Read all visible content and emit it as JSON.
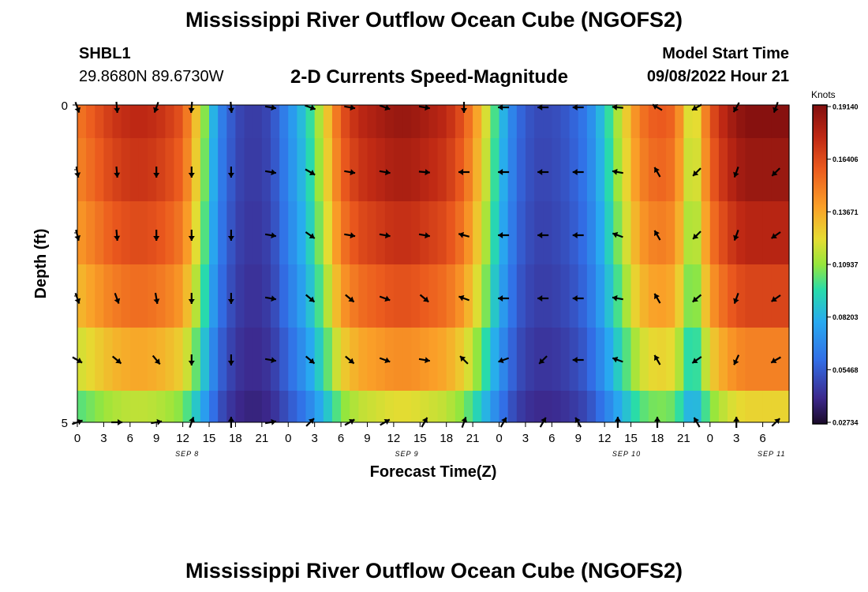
{
  "header": {
    "title": "Mississippi River Outflow Ocean Cube (NGOFS2)",
    "station_id": "SHBL1",
    "station_coords": "29.8680N  89.6730W",
    "subtitle": "2-D Currents Speed-Magnitude",
    "model_label": "Model Start Time",
    "model_time": "09/08/2022 Hour 21"
  },
  "footer": {
    "title": "Mississippi River Outflow Ocean Cube (NGOFS2)"
  },
  "chart_data": {
    "type": "heatmap",
    "xlabel": "Forecast Time(Z)",
    "ylabel": "Depth (ft)",
    "colorbar_label": "Knots",
    "colorbar_ticks": [
      "0.19140",
      "0.16406",
      "0.13671",
      "0.10937",
      "0.08203",
      "0.05468",
      "0.02734"
    ],
    "colorbar_values": [
      0.1914,
      0.16406,
      0.13671,
      0.10937,
      0.08203,
      0.05468,
      0.02734
    ],
    "zlim": [
      0.02734,
      0.1914
    ],
    "x_range_hours": [
      0,
      81
    ],
    "x_tick_labels": [
      "0",
      "3",
      "6",
      "9",
      "12",
      "15",
      "18",
      "21",
      "0",
      "3",
      "6",
      "9",
      "12",
      "15",
      "18",
      "21",
      "0",
      "3",
      "6",
      "9",
      "12",
      "15",
      "18",
      "21",
      "0",
      "3",
      "6"
    ],
    "date_labels": [
      "SEP 8",
      "SEP 9",
      "SEP 10",
      "SEP 11"
    ],
    "date_label_hours": [
      12.5,
      37.5,
      62.5,
      79
    ],
    "y_tick_labels": [
      "0",
      "5"
    ],
    "ylim": [
      0,
      5
    ],
    "depth_layers": 6,
    "speed_profile_hours": [
      0,
      2,
      4,
      6,
      8,
      10,
      12,
      14,
      16,
      18,
      20,
      22,
      24,
      26,
      28,
      30,
      32,
      34,
      36,
      38,
      40,
      42,
      44,
      46,
      48,
      50,
      52,
      54,
      56,
      58,
      60,
      62,
      64,
      66,
      68,
      70,
      72,
      74,
      76,
      78,
      80
    ],
    "speed_profile_surface": [
      0.15,
      0.16,
      0.17,
      0.175,
      0.175,
      0.17,
      0.16,
      0.12,
      0.07,
      0.05,
      0.045,
      0.05,
      0.07,
      0.09,
      0.12,
      0.16,
      0.175,
      0.18,
      0.185,
      0.185,
      0.18,
      0.175,
      0.16,
      0.13,
      0.09,
      0.06,
      0.05,
      0.05,
      0.055,
      0.065,
      0.09,
      0.12,
      0.15,
      0.16,
      0.155,
      0.11,
      0.16,
      0.18,
      0.19,
      0.19,
      0.19
    ],
    "depth_attenuation": [
      1.0,
      0.97,
      0.92,
      0.85,
      0.74,
      0.6
    ],
    "arrows": {
      "times_hours": [
        0,
        4.5,
        9,
        13,
        17.5,
        22,
        26.5,
        31,
        35,
        39.5,
        44,
        48.5,
        53,
        57,
        61.5,
        66,
        70.5,
        75,
        79.5
      ],
      "layer_0_angles": [
        160,
        175,
        200,
        185,
        175,
        100,
        110,
        100,
        110,
        100,
        180,
        270,
        270,
        270,
        275,
        300,
        240,
        210,
        200
      ],
      "layer_1_angles": [
        170,
        175,
        180,
        180,
        180,
        100,
        120,
        100,
        100,
        95,
        270,
        270,
        270,
        270,
        280,
        330,
        225,
        200,
        225
      ],
      "layer_2_angles": [
        165,
        175,
        180,
        180,
        180,
        100,
        125,
        100,
        100,
        100,
        285,
        270,
        270,
        270,
        290,
        330,
        225,
        200,
        235
      ],
      "layer_3_angles": [
        160,
        160,
        170,
        180,
        180,
        100,
        130,
        130,
        110,
        130,
        290,
        270,
        270,
        270,
        280,
        330,
        230,
        200,
        235
      ],
      "layer_4_angles": [
        120,
        130,
        140,
        180,
        180,
        100,
        130,
        130,
        110,
        100,
        315,
        250,
        225,
        270,
        290,
        330,
        235,
        205,
        240
      ],
      "layer_5_angles": [
        70,
        90,
        80,
        20,
        0,
        80,
        45,
        60,
        60,
        30,
        20,
        30,
        30,
        330,
        0,
        0,
        330,
        0,
        45
      ]
    }
  }
}
